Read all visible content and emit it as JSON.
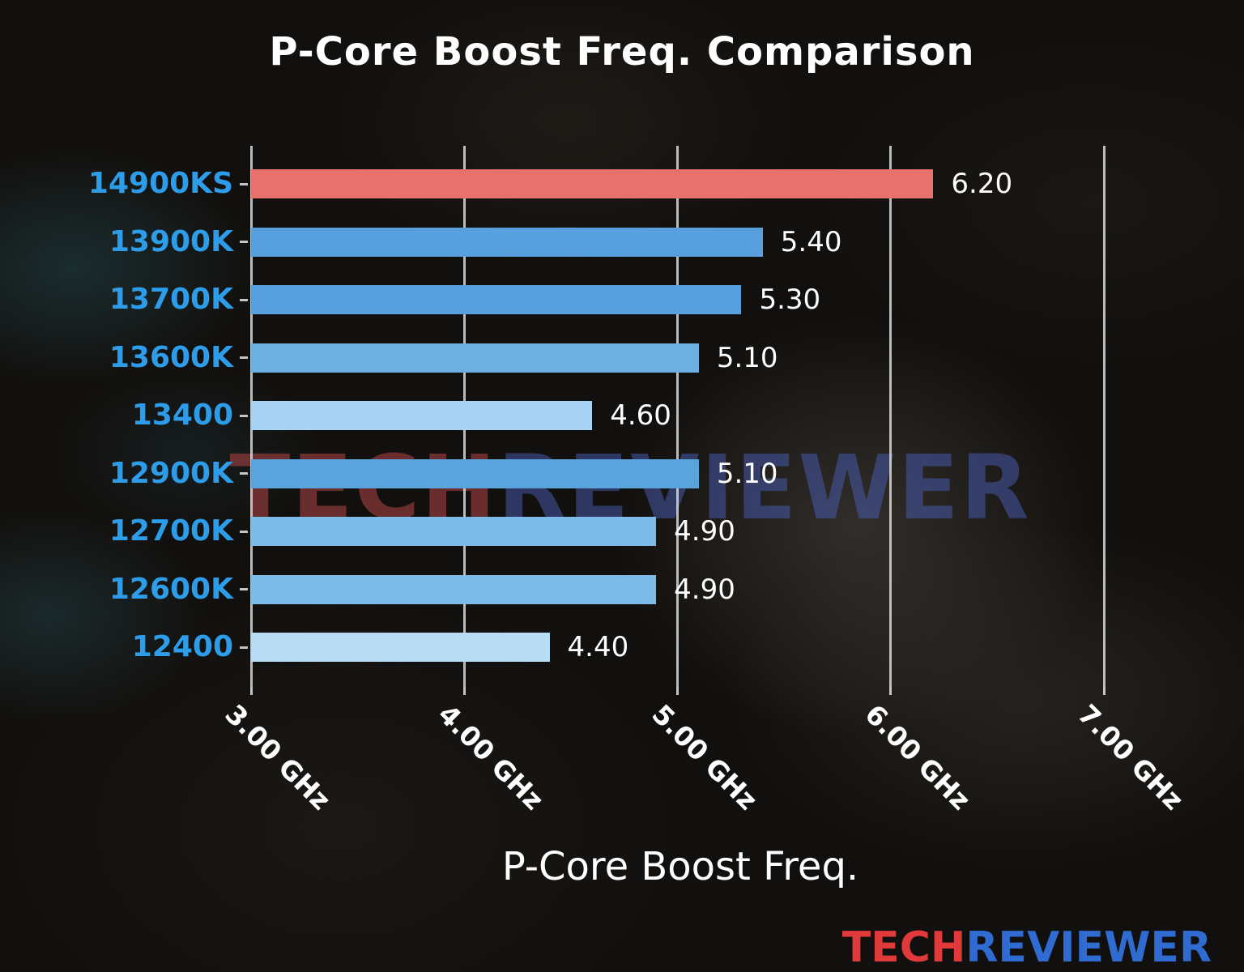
{
  "chart_data": {
    "type": "bar",
    "orientation": "horizontal",
    "title": "P-Core Boost Freq. Comparison",
    "xlabel": "P-Core Boost Freq.",
    "categories": [
      "14900KS",
      "13900K",
      "13700K",
      "13600K",
      "13400",
      "12900K",
      "12700K",
      "12600K",
      "12400"
    ],
    "values": [
      6.2,
      5.4,
      5.3,
      5.1,
      4.6,
      5.1,
      4.9,
      4.9,
      4.4
    ],
    "value_labels": [
      "6.20",
      "5.40",
      "5.30",
      "5.10",
      "4.60",
      "5.10",
      "4.90",
      "4.90",
      "4.40"
    ],
    "bar_colors": [
      "#e8716e",
      "#56a0de",
      "#56a0de",
      "#6cb0e2",
      "#a9d3f2",
      "#5aa4de",
      "#7cbae8",
      "#7cbae8",
      "#b9dcf5"
    ],
    "xlim": [
      3.0,
      7.0
    ],
    "x_ticks": [
      "3.00 GHz",
      "4.00 GHz",
      "5.00 GHz",
      "6.00 GHz",
      "7.00 GHz"
    ],
    "x_tick_values": [
      3,
      4,
      5,
      6,
      7
    ],
    "grid": true,
    "legend": "none"
  },
  "watermark": {
    "tech": "TECH",
    "reviewer": "REVIEWER"
  },
  "logo": {
    "tech": "TECH",
    "reviewer": "REVIEWER"
  },
  "colors": {
    "text": "#ffffff",
    "category_label": "#2d9de9",
    "grid": "#d9d9d9",
    "bar_highlight": "#e8716e",
    "bar_blue": "#56a0de",
    "watermark_tech": "#c24a4d",
    "watermark_reviewer": "#4a5fb5",
    "logo_tech": "#e03a3a",
    "logo_reviewer": "#2f6bd0"
  }
}
